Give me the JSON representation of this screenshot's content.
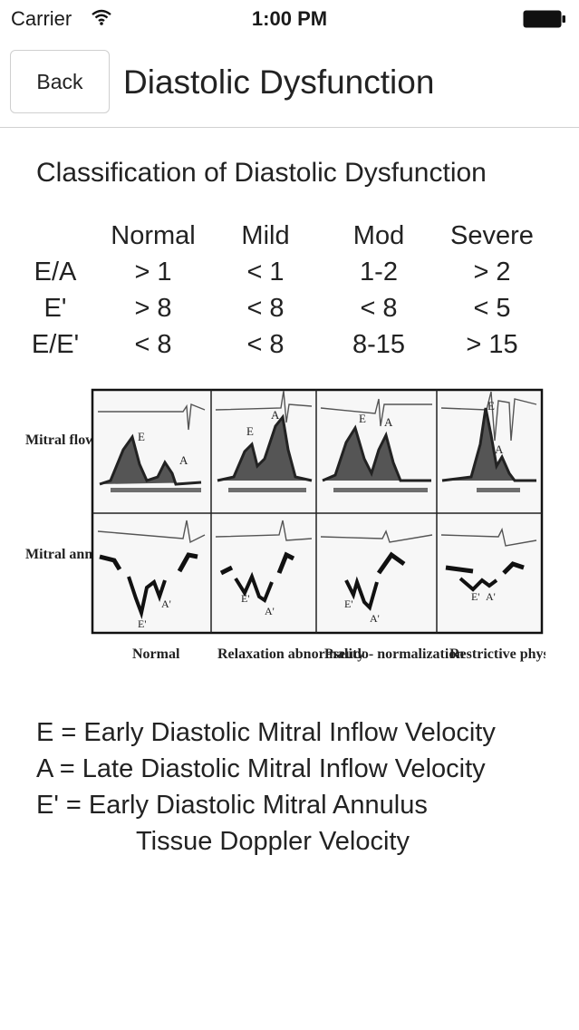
{
  "status_bar": {
    "carrier": "Carrier",
    "time": "1:00 PM"
  },
  "nav": {
    "back_label": "Back",
    "title": "Diastolic Dysfunction"
  },
  "classification": {
    "title": "Classification of Diastolic Dysfunction",
    "columns": [
      "Normal",
      "Mild",
      "Mod",
      "Severe"
    ],
    "rows": [
      {
        "label": "E/A",
        "values": [
          "> 1",
          "< 1",
          "1-2",
          "> 2"
        ]
      },
      {
        "label": "E'",
        "values": [
          "> 8",
          "< 8",
          "< 8",
          "< 5"
        ]
      },
      {
        "label": "E/E'",
        "values": [
          "< 8",
          "< 8",
          "8-15",
          "> 15"
        ]
      }
    ]
  },
  "figure": {
    "row_labels": [
      "Mitral flow",
      "Mitral annulus velocity"
    ],
    "col_labels": [
      "Normal",
      "Relaxation abnormality",
      "Pseudo- normalization",
      "Restrictive physiology"
    ],
    "peak_e": "E",
    "peak_a": "A",
    "peak_e_prime": "E'",
    "peak_a_prime": "A'"
  },
  "legend": [
    "E = Early Diastolic Mitral Inflow Velocity",
    "A = Late Diastolic Mitral Inflow Velocity",
    "E' = Early Diastolic Mitral Annulus",
    "Tissue Doppler Velocity"
  ]
}
